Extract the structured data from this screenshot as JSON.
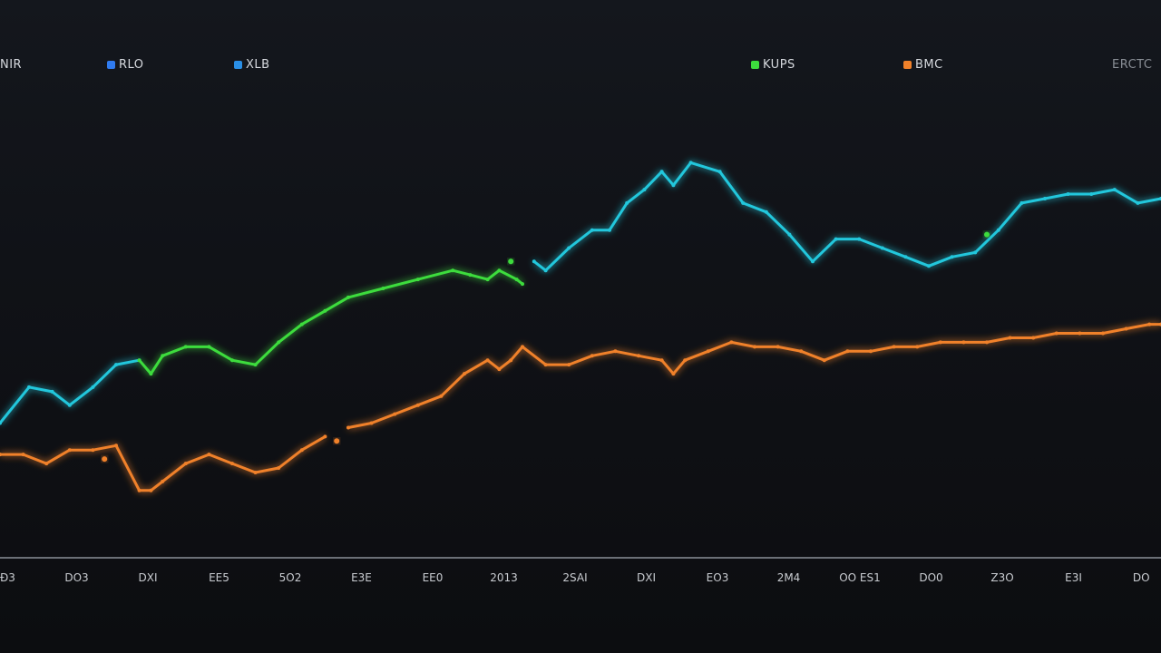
{
  "chart_data": {
    "type": "line",
    "title": "",
    "xlabel": "",
    "ylabel": "",
    "x_ticks": [
      "Ð3",
      "DO3",
      "DXI",
      "EE5",
      "5O2",
      "E3E",
      "EE0",
      "2013",
      "2SAI",
      "DXI",
      "EO3",
      "2M4",
      "OO ES1",
      "DO0",
      "Z3O",
      "E3I",
      "DO"
    ],
    "ylim": [
      0,
      100
    ],
    "legend": [
      {
        "label": "NIR",
        "color": "#cfd3d8"
      },
      {
        "label": "RLO",
        "color": "#2f7bf0"
      },
      {
        "label": "XLB",
        "color": "#2a8fe6"
      },
      {
        "label": "KUPS",
        "color": "#3ddc3d"
      },
      {
        "label": "BMC",
        "color": "#f0812a"
      },
      {
        "label": "ERCTC",
        "color": "#8a8f96"
      }
    ],
    "series": [
      {
        "segments": [
          {
            "color": "#22c7dc",
            "x": [
              0,
              2.5,
              4.5,
              6,
              8,
              10,
              12
            ],
            "y": [
              30,
              38,
              37,
              34,
              38,
              43,
              44
            ]
          },
          {
            "color": "#3ddc3d",
            "x": [
              12,
              13,
              14,
              16,
              18,
              20,
              22,
              24,
              26,
              28,
              30,
              33,
              36,
              39,
              40.5,
              42,
              43,
              44.5,
              45
            ],
            "y": [
              44,
              41,
              45,
              47,
              47,
              44,
              43,
              48,
              52,
              55,
              58,
              60,
              62,
              64,
              63,
              62,
              64,
              62,
              61
            ]
          },
          {
            "color": "#22c7dc",
            "x": [
              46,
              47,
              49,
              51,
              52.5,
              54,
              55.5,
              57,
              58,
              59.5,
              62,
              64,
              66,
              68,
              70,
              72,
              74,
              76,
              78,
              80,
              82,
              84,
              86,
              88,
              90,
              92,
              94,
              96,
              98,
              100
            ],
            "y": [
              66,
              64,
              69,
              73,
              73,
              79,
              82,
              86,
              83,
              88,
              86,
              79,
              77,
              72,
              66,
              71,
              71,
              69,
              67,
              65,
              67,
              68,
              73,
              79,
              80,
              81,
              81,
              82,
              79,
              80
            ]
          }
        ],
        "markers": [
          {
            "x": 44,
            "y": 66,
            "color": "#3ddc3d"
          },
          {
            "x": 85,
            "y": 72,
            "color": "#3ddc3d"
          }
        ]
      },
      {
        "segments": [
          {
            "color": "#f0812a",
            "x": [
              0,
              2,
              4,
              6,
              8,
              10,
              12,
              13,
              14,
              16,
              18,
              20,
              22,
              24,
              26,
              28
            ],
            "y": [
              23,
              23,
              21,
              24,
              24,
              25,
              15,
              15,
              17,
              21,
              23,
              21,
              19,
              20,
              24,
              27
            ]
          },
          {
            "color": "#f0812a",
            "x": [
              30,
              32,
              34,
              36,
              38,
              40,
              42,
              43,
              44,
              45,
              47,
              49,
              51,
              53,
              55,
              57,
              58,
              59,
              61,
              63,
              65,
              67,
              69,
              71,
              73,
              75,
              77,
              79,
              81,
              83,
              85,
              87,
              89,
              91,
              93,
              95,
              97,
              99,
              100
            ],
            "y": [
              29,
              30,
              32,
              34,
              36,
              41,
              44,
              42,
              44,
              47,
              43,
              43,
              45,
              46,
              45,
              44,
              41,
              44,
              46,
              48,
              47,
              47,
              46,
              44,
              46,
              46,
              47,
              47,
              48,
              48,
              48,
              49,
              49,
              50,
              50,
              50,
              51,
              52,
              52
            ]
          }
        ],
        "markers": [
          {
            "x": 9,
            "y": 22,
            "color": "#f0812a"
          },
          {
            "x": 29,
            "y": 26,
            "color": "#f0812a"
          }
        ]
      }
    ]
  }
}
